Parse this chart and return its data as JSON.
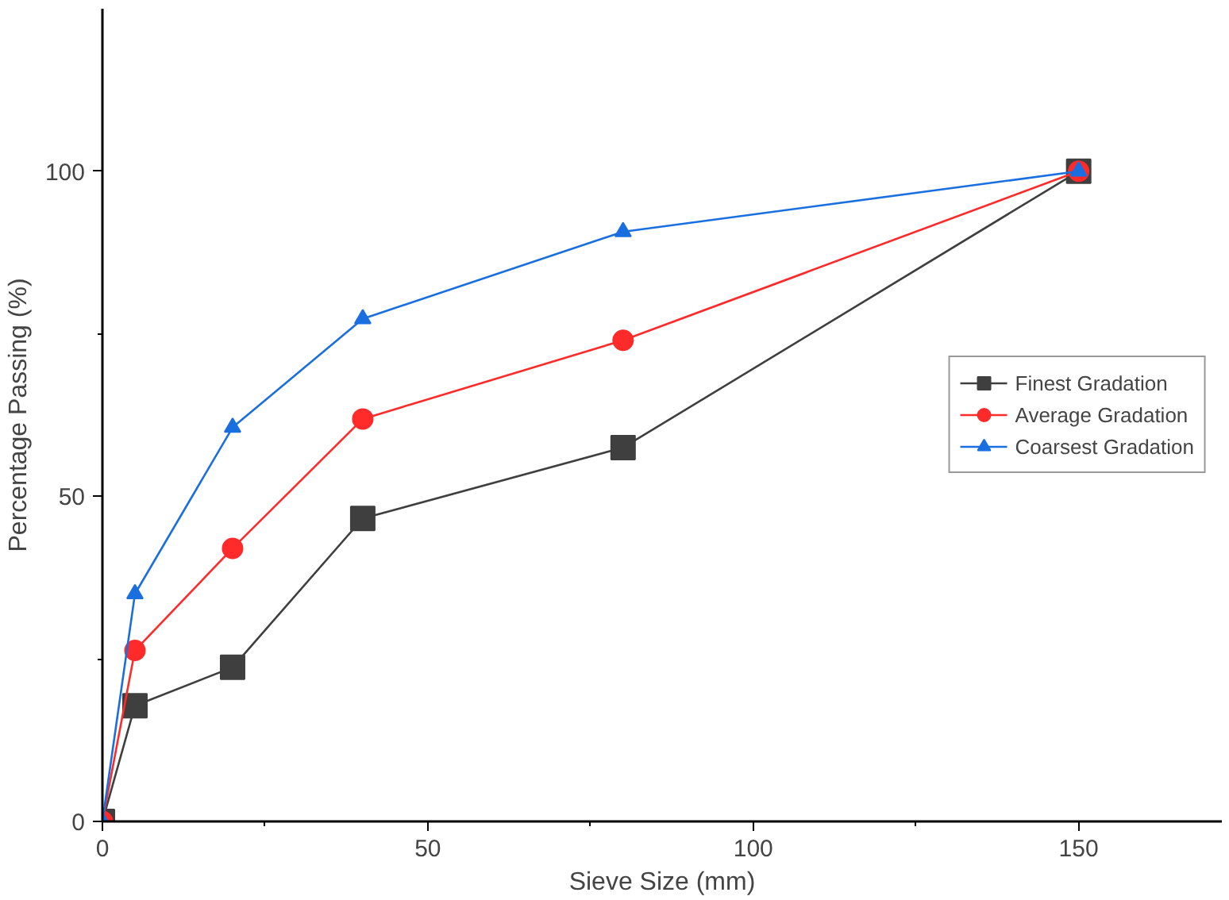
{
  "chart_data": {
    "type": "line",
    "xlabel": "Sieve Size (mm)",
    "ylabel": "Percentage Passing (%)",
    "xlim": [
      0,
      172
    ],
    "ylim": [
      0,
      125
    ],
    "xticks": [
      0,
      50,
      100,
      150
    ],
    "yticks": [
      0,
      50,
      100
    ],
    "grid": false,
    "legend": "right",
    "x": [
      0,
      5,
      20,
      40,
      80,
      150
    ],
    "series": [
      {
        "name": "Finest Gradation",
        "color": "#3f3f3f",
        "marker": "square",
        "values": [
          0,
          17.8,
          23.7,
          46.6,
          57.5,
          100
        ]
      },
      {
        "name": "Average Gradation",
        "color": "#ff2a2a",
        "marker": "circle",
        "values": [
          0,
          26.3,
          42,
          61.9,
          74,
          100
        ]
      },
      {
        "name": "Coarsest Gradation",
        "color": "#1a6fe0",
        "marker": "triangle",
        "values": [
          0,
          35,
          60.6,
          77.3,
          90.7,
          100
        ]
      }
    ]
  }
}
